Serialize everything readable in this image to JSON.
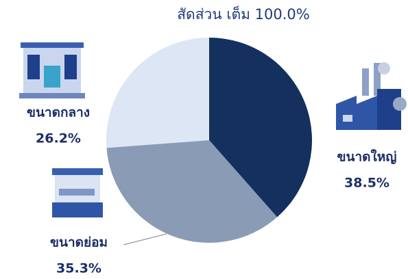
{
  "chart_data": {
    "type": "pie",
    "title": "สัดส่วน เต็ม 100.0%",
    "categories": [
      "ขนาดใหญ่",
      "ขนาดย่อม",
      "ขนาดกลาง"
    ],
    "values": [
      38.5,
      35.3,
      26.2
    ],
    "value_labels": [
      "38.5%",
      "35.3%",
      "26.2%"
    ],
    "colors": [
      "#13305e",
      "#8a9bb5",
      "#dce6f5"
    ]
  }
}
